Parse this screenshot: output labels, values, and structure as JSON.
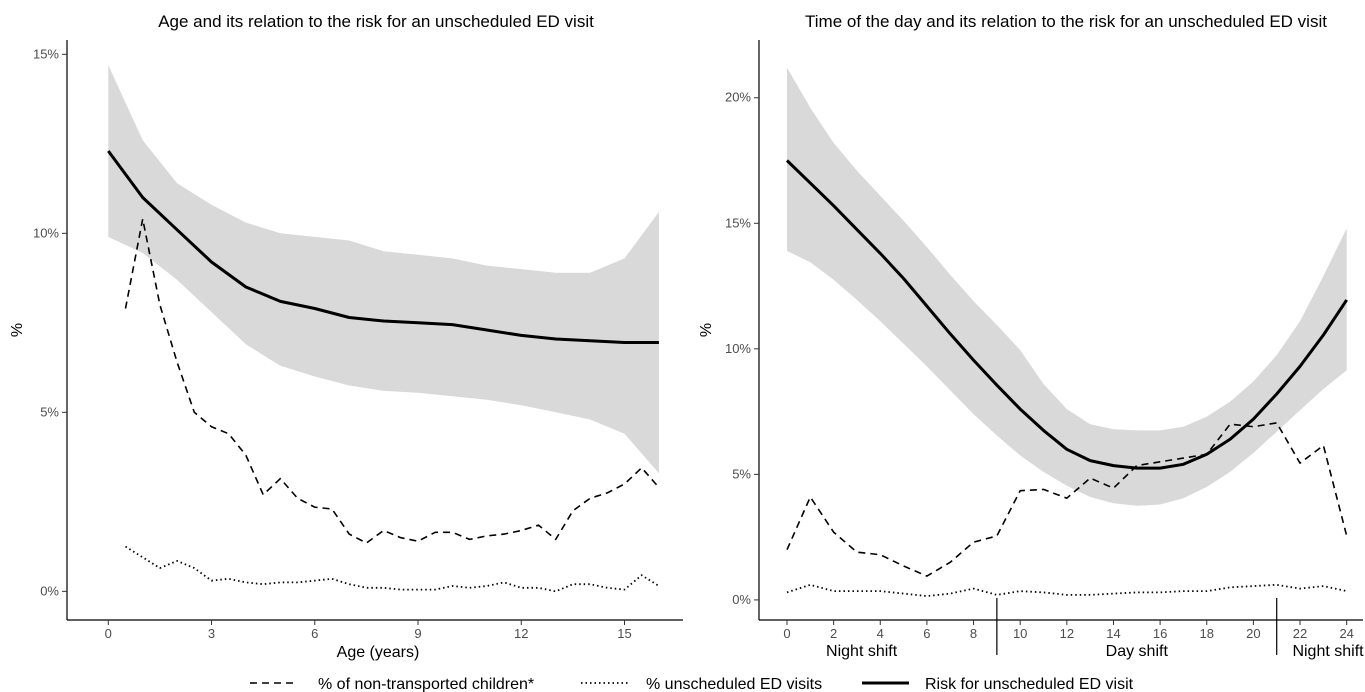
{
  "legend": [
    {
      "label": "% of non-transported children*",
      "dash": "7,5"
    },
    {
      "label": "% unscheduled ED visits",
      "dash": "1.5,3"
    },
    {
      "label": "Risk for unscheduled ED visit",
      "dash": ""
    }
  ],
  "chart_data": [
    {
      "type": "line",
      "title": "Age and its relation to the risk for an unscheduled ED visit",
      "xlabel": "Age (years)",
      "ylabel": "%",
      "xlim": [
        -1.2,
        16.7
      ],
      "ylim": [
        -0.8,
        15.4
      ],
      "xticks": [
        0,
        3,
        6,
        9,
        12,
        15
      ],
      "yticks": [
        0,
        5,
        10,
        15
      ],
      "ytick_labels": [
        "0%",
        "5%",
        "10%",
        "15%"
      ],
      "grid": false,
      "legend_position": "bottom",
      "series": [
        {
          "name": "Risk for unscheduled ED visit",
          "style": "solid",
          "width": 3,
          "x": [
            0,
            1,
            2,
            3,
            4,
            5,
            6,
            7,
            8,
            9,
            10,
            11,
            12,
            13,
            14,
            15,
            16
          ],
          "y": [
            12.3,
            11.0,
            10.1,
            9.2,
            8.5,
            8.1,
            7.9,
            7.65,
            7.55,
            7.5,
            7.45,
            7.3,
            7.15,
            7.05,
            7.0,
            6.95,
            6.95
          ]
        },
        {
          "name": "95% CI band",
          "style": "band",
          "x": [
            0,
            1,
            2,
            3,
            4,
            5,
            6,
            7,
            8,
            9,
            10,
            11,
            12,
            13,
            14,
            15,
            16
          ],
          "lower": [
            9.9,
            9.45,
            8.7,
            7.8,
            6.9,
            6.3,
            6.0,
            5.75,
            5.6,
            5.55,
            5.45,
            5.35,
            5.2,
            5.0,
            4.8,
            4.4,
            3.3
          ],
          "upper": [
            14.7,
            12.6,
            11.4,
            10.8,
            10.3,
            10.0,
            9.9,
            9.8,
            9.5,
            9.4,
            9.3,
            9.1,
            9.0,
            8.9,
            8.9,
            9.3,
            10.6
          ]
        },
        {
          "name": "% of non-transported children*",
          "style": "dashed",
          "width": 1.6,
          "x": [
            0.5,
            1,
            1.5,
            2,
            2.5,
            3,
            3.5,
            4,
            4.5,
            5,
            5.5,
            6,
            6.5,
            7,
            7.5,
            8,
            8.5,
            9,
            9.5,
            10,
            10.5,
            11,
            11.5,
            12,
            12.5,
            13,
            13.5,
            14,
            14.5,
            15,
            15.5,
            16
          ],
          "y": [
            7.9,
            10.4,
            8.0,
            6.4,
            5.0,
            4.6,
            4.4,
            3.8,
            2.7,
            3.15,
            2.6,
            2.35,
            2.3,
            1.6,
            1.35,
            1.7,
            1.5,
            1.4,
            1.65,
            1.65,
            1.45,
            1.55,
            1.6,
            1.7,
            1.85,
            1.45,
            2.25,
            2.6,
            2.75,
            3.0,
            3.45,
            2.9
          ]
        },
        {
          "name": "% unscheduled ED visits",
          "style": "dotted",
          "width": 1.8,
          "x": [
            0.5,
            1,
            1.5,
            2,
            2.5,
            3,
            3.5,
            4,
            4.5,
            5,
            5.5,
            6,
            6.5,
            7,
            7.5,
            8,
            8.5,
            9,
            9.5,
            10,
            10.5,
            11,
            11.5,
            12,
            12.5,
            13,
            13.5,
            14,
            14.5,
            15,
            15.5,
            16
          ],
          "y": [
            1.25,
            0.95,
            0.65,
            0.85,
            0.65,
            0.3,
            0.35,
            0.25,
            0.2,
            0.25,
            0.25,
            0.3,
            0.35,
            0.2,
            0.1,
            0.1,
            0.05,
            0.05,
            0.05,
            0.15,
            0.1,
            0.15,
            0.25,
            0.1,
            0.1,
            0.0,
            0.2,
            0.2,
            0.1,
            0.05,
            0.45,
            0.15
          ]
        }
      ]
    },
    {
      "type": "line",
      "title": "Time of the day and its relation to the risk for an unscheduled ED visit",
      "xlabel": "",
      "ylabel": "%",
      "xlim": [
        -1.2,
        24.7
      ],
      "ylim": [
        -0.8,
        22.3
      ],
      "xticks": [
        0,
        2,
        4,
        6,
        8,
        10,
        12,
        14,
        16,
        18,
        20,
        22,
        24
      ],
      "yticks": [
        0,
        5,
        10,
        15,
        20
      ],
      "ytick_labels": [
        "0%",
        "5%",
        "10%",
        "15%",
        "20%"
      ],
      "grid": false,
      "shift_dividers": [
        9,
        21
      ],
      "shifts": [
        {
          "label": "Night shift",
          "center": 3.2
        },
        {
          "label": "Day shift",
          "center": 15
        },
        {
          "label": "Night shift",
          "center": 23.2
        }
      ],
      "series": [
        {
          "name": "Risk for unscheduled ED visit",
          "style": "solid",
          "width": 3,
          "x": [
            0,
            1,
            2,
            3,
            4,
            5,
            6,
            7,
            8,
            9,
            10,
            11,
            12,
            13,
            14,
            15,
            16,
            17,
            18,
            19,
            20,
            21,
            22,
            23,
            24
          ],
          "y": [
            17.5,
            16.6,
            15.7,
            14.75,
            13.8,
            12.8,
            11.7,
            10.6,
            9.55,
            8.55,
            7.6,
            6.75,
            6.0,
            5.55,
            5.35,
            5.25,
            5.25,
            5.4,
            5.8,
            6.4,
            7.2,
            8.2,
            9.3,
            10.55,
            11.95
          ]
        },
        {
          "name": "95% CI band",
          "style": "band",
          "x": [
            0,
            1,
            2,
            3,
            4,
            5,
            6,
            7,
            8,
            9,
            10,
            11,
            12,
            13,
            14,
            15,
            16,
            17,
            18,
            19,
            20,
            21,
            22,
            23,
            24
          ],
          "lower": [
            13.9,
            13.45,
            12.75,
            11.95,
            11.1,
            10.2,
            9.3,
            8.35,
            7.4,
            6.55,
            5.75,
            5.1,
            4.55,
            4.1,
            3.85,
            3.75,
            3.8,
            4.05,
            4.5,
            5.1,
            5.85,
            6.7,
            7.55,
            8.4,
            9.15
          ],
          "upper": [
            21.2,
            19.6,
            18.2,
            17.1,
            16.1,
            15.1,
            14.05,
            12.95,
            11.9,
            10.95,
            9.95,
            8.6,
            7.6,
            7.0,
            6.8,
            6.75,
            6.75,
            6.9,
            7.3,
            7.9,
            8.7,
            9.75,
            11.1,
            12.9,
            14.8
          ]
        },
        {
          "name": "% of non-transported children*",
          "style": "dashed",
          "width": 1.6,
          "x": [
            0,
            1,
            2,
            3,
            4,
            5,
            6,
            7,
            8,
            9,
            10,
            11,
            12,
            13,
            14,
            15,
            16,
            17,
            18,
            19,
            20,
            21,
            22,
            23,
            24
          ],
          "y": [
            2.0,
            4.1,
            2.7,
            1.9,
            1.8,
            1.35,
            0.95,
            1.5,
            2.3,
            2.55,
            4.35,
            4.4,
            4.05,
            4.85,
            4.45,
            5.35,
            5.5,
            5.65,
            5.8,
            7.0,
            6.9,
            7.05,
            5.45,
            6.15,
            2.55
          ]
        },
        {
          "name": "% unscheduled ED visits",
          "style": "dotted",
          "width": 1.8,
          "x": [
            0,
            1,
            2,
            3,
            4,
            5,
            6,
            7,
            8,
            9,
            10,
            11,
            12,
            13,
            14,
            15,
            16,
            17,
            18,
            19,
            20,
            21,
            22,
            23,
            24
          ],
          "y": [
            0.3,
            0.6,
            0.35,
            0.35,
            0.35,
            0.25,
            0.15,
            0.25,
            0.45,
            0.2,
            0.35,
            0.3,
            0.2,
            0.2,
            0.25,
            0.3,
            0.3,
            0.35,
            0.35,
            0.5,
            0.55,
            0.6,
            0.45,
            0.55,
            0.35
          ]
        }
      ]
    }
  ]
}
